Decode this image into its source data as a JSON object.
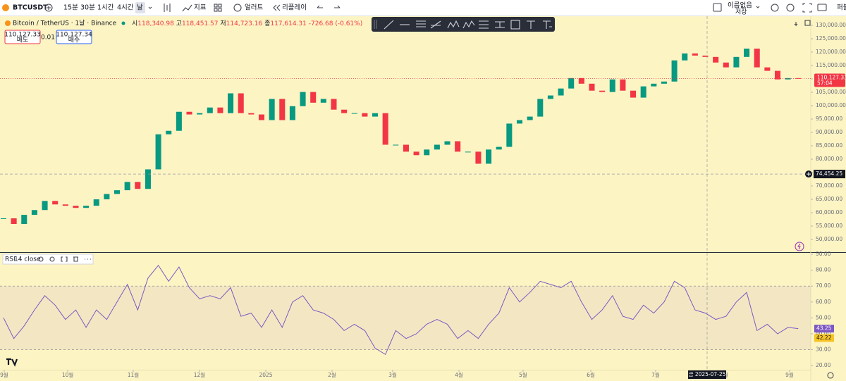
{
  "toolbar": {
    "symbol": "BTCUSDT",
    "intervals": [
      "15분",
      "30분",
      "1시간",
      "4시간",
      "날"
    ],
    "indicators": "지표",
    "alert": "얼러트",
    "replay": "리플레이",
    "layout_name": "이름없음",
    "layout_status": "저장",
    "publish": "퍼블"
  },
  "legend": {
    "title": "Bitcoin / TetherUS · 1날 · Binance",
    "open_label": "시",
    "open": "118,340.98",
    "high_label": "고",
    "high": "118,451.57",
    "low_label": "저",
    "low": "114,723.16",
    "close_label": "종",
    "close": "117,614.31",
    "change": "-726.68 (-0.61%)",
    "sell_price": "110,127.33",
    "sell_label": "매도",
    "spread": "0.01",
    "buy_price": "110,127.34",
    "buy_label": "매수"
  },
  "chart_data": [
    {
      "type": "candlestick",
      "series": [
        {
          "values": [
            57900,
            55800,
            59200,
            61000,
            64400,
            63100,
            62600,
            61800,
            62600,
            65000,
            67000,
            68400,
            71500,
            68900,
            76200,
            89300,
            90600,
            97700,
            96700,
            97200,
            99300,
            97200,
            104600,
            97200,
            96700,
            94600,
            102500,
            94600,
            99800,
            105100,
            101100,
            102500,
            98500,
            97200,
            97200,
            95900,
            97200,
            85400,
            85400,
            82800,
            81500,
            83600,
            85400,
            86700,
            82800,
            82800,
            78300,
            83600,
            84600,
            93300,
            94600,
            95900,
            102500,
            103800,
            106400,
            110300,
            108200,
            105600,
            105100,
            109800,
            105600,
            103000,
            107200,
            108200,
            109000,
            116900,
            119500,
            118700,
            118200,
            116100,
            114300,
            118200,
            121300,
            114300,
            113000,
            109800,
            110300,
            110127.33
          ]
        }
      ],
      "up_color": "#089981",
      "down_color": "#f23645",
      "xlim": [
        -0.34,
        78.21
      ],
      "xticks": [
        {
          "value": 0.07,
          "label": "9월"
        },
        {
          "value": 6.22,
          "label": "10월"
        },
        {
          "value": 12.57,
          "label": "11월"
        },
        {
          "value": 18.99,
          "label": "12월"
        },
        {
          "value": 25.41,
          "label": "2025"
        },
        {
          "value": 31.83,
          "label": "2월"
        },
        {
          "value": 37.7,
          "label": "3월"
        },
        {
          "value": 44.13,
          "label": "4월"
        },
        {
          "value": 50.34,
          "label": "5월"
        },
        {
          "value": 56.9,
          "label": "6월"
        },
        {
          "value": 63.18,
          "label": "7월"
        },
        {
          "value": 69.81,
          "label": "8월"
        },
        {
          "value": 76.16,
          "label": "9월"
        }
      ],
      "ylim": [
        45280,
        133410
      ],
      "yticks": [
        {
          "value": 50000,
          "label": "50,000.00"
        },
        {
          "value": 55000,
          "label": "55,000.00"
        },
        {
          "value": 60000,
          "label": "60,000.00"
        },
        {
          "value": 65000,
          "label": "65,000.00"
        },
        {
          "value": 70000,
          "label": "70,000.00"
        },
        {
          "value": 75000,
          "label": "75,000.00"
        },
        {
          "value": 80000,
          "label": "80,000.00"
        },
        {
          "value": 85000,
          "label": "85,000.00"
        },
        {
          "value": 90000,
          "label": "90,000.00"
        },
        {
          "value": 95000,
          "label": "95,000.00"
        },
        {
          "value": 100000,
          "label": "100,000.00"
        },
        {
          "value": 105000,
          "label": "105,000.00"
        },
        {
          "value": 110000,
          "label": "110,000.00"
        },
        {
          "value": 115000,
          "label": "115,000.00"
        },
        {
          "value": 120000,
          "label": "120,000.00"
        },
        {
          "value": 125000,
          "label": "125,000.00"
        },
        {
          "value": 130000,
          "label": "130,000.00"
        }
      ],
      "last_price": {
        "value": 110127.33,
        "label": "110,127.33"
      },
      "countdown": "57:04",
      "crosshair": {
        "x": 68.17,
        "date": "금 2025-07-25",
        "price": {
          "value": 74454.25,
          "label": "74,454.25"
        }
      }
    },
    {
      "type": "line",
      "title": "RSI",
      "subtitle": "14 close",
      "series": [
        {
          "values": [
            50,
            37,
            45,
            55,
            64,
            58,
            49,
            55,
            44,
            55,
            49,
            60,
            71,
            55,
            75,
            83,
            73,
            82,
            69,
            62,
            64,
            62,
            69,
            51,
            53,
            44,
            55,
            44,
            60,
            64,
            55,
            53,
            49,
            42,
            46,
            42,
            31,
            27,
            42,
            37,
            40,
            46,
            49,
            46,
            37,
            42,
            37,
            46,
            53,
            69,
            60,
            66,
            73,
            71,
            69,
            73,
            60,
            49,
            55,
            64,
            51,
            49,
            58,
            53,
            60,
            73,
            69,
            55,
            53,
            49,
            51,
            60,
            66,
            42,
            46,
            40,
            44,
            43.25
          ],
          "color": "#7e57c2"
        }
      ],
      "ma_last": 42.22,
      "ma_color": "#f7c325",
      "xlim": [
        -0.34,
        78.21
      ],
      "ylim": [
        17.4,
        90.9
      ],
      "yticks": [
        {
          "value": 20,
          "label": "20.00"
        },
        {
          "value": 30,
          "label": "30.00"
        },
        {
          "value": 40,
          "label": "40.00"
        },
        {
          "value": 50,
          "label": "50.00"
        },
        {
          "value": 60,
          "label": "60.00"
        },
        {
          "value": 70,
          "label": "70.00"
        },
        {
          "value": 80,
          "label": "80.00"
        },
        {
          "value": 90,
          "label": "90.00"
        }
      ],
      "band": [
        30,
        70
      ]
    }
  ]
}
